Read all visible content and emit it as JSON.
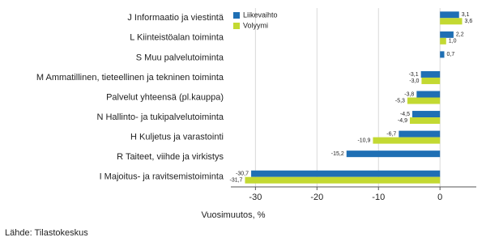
{
  "chart_data": {
    "type": "bar",
    "orientation": "horizontal",
    "categories": [
      "J Informaatio ja viestintä",
      "L Kiinteistöalan toiminta",
      "S Muu palvelutoiminta",
      "M Ammatillinen, tieteellinen ja tekninen toiminta",
      "Palvelut yhteensä (pl.kauppa)",
      "N Hallinto- ja tukipalvelutoiminta",
      "H Kuljetus ja varastointi",
      "R Taiteet, viihde ja virkistys",
      "I Majoitus- ja ravitsemistoiminta"
    ],
    "series": [
      {
        "name": "Liikevaihto",
        "color": "#1f6fb4",
        "values": [
          3.1,
          2.2,
          0.7,
          -3.1,
          -3.8,
          -4.5,
          -6.7,
          -15.2,
          -30.7
        ],
        "value_labels": [
          "3,1",
          "2,2",
          "0,7",
          "-3,1",
          "-3,8",
          "-4,5",
          "-6,7",
          "-15,2",
          "-30,7"
        ]
      },
      {
        "name": "Volyymi",
        "color": "#c3d932",
        "values": [
          3.6,
          1.0,
          null,
          -3.0,
          -5.3,
          -4.9,
          -10.9,
          null,
          -31.7
        ],
        "value_labels": [
          "3,6",
          "1,0",
          null,
          "-3,0",
          "-5,3",
          "-4,9",
          "-10,9",
          null,
          "-31,7"
        ]
      }
    ],
    "xlabel": "Vuosimuutos, %",
    "xlim": [
      -34,
      5.9
    ],
    "xticks": [
      -30,
      -20,
      -10,
      0
    ],
    "grid": true,
    "source": "Lähde: Tilastokeskus"
  }
}
